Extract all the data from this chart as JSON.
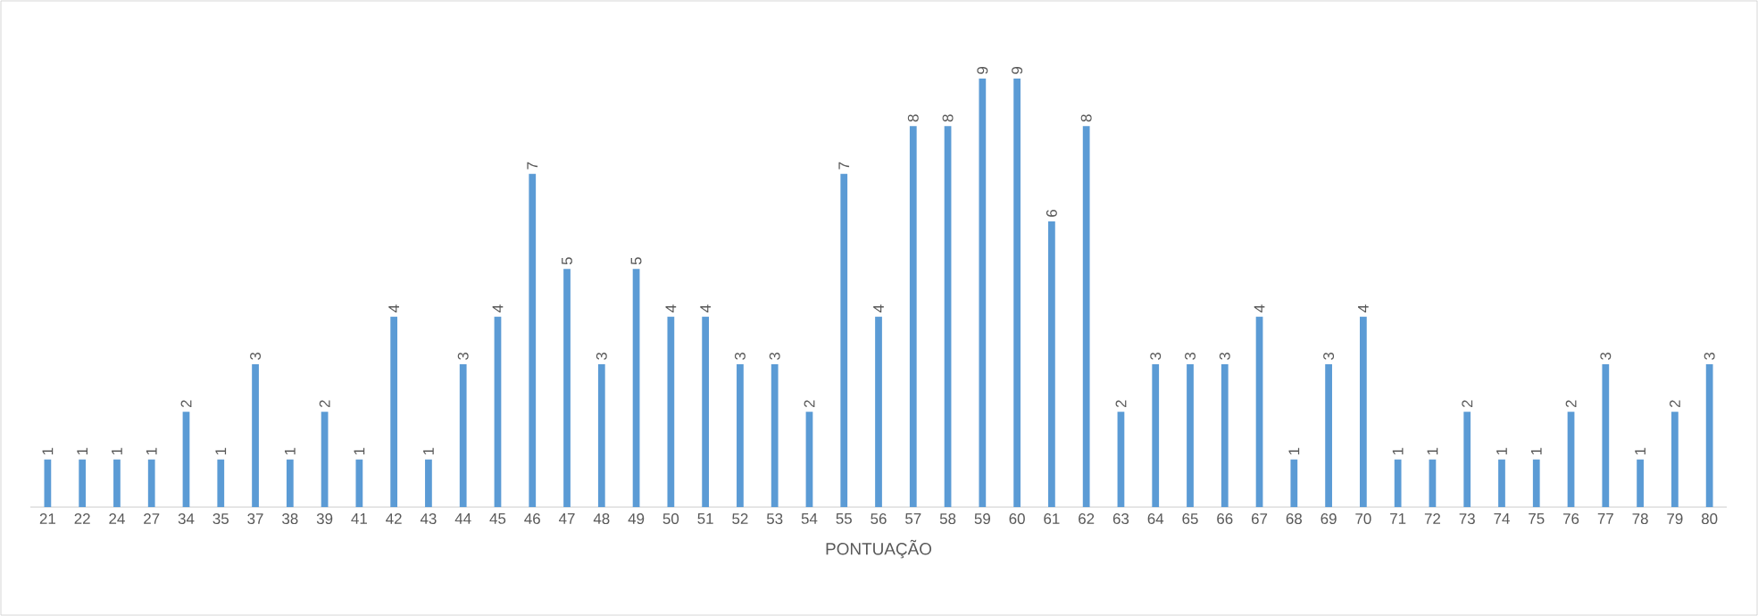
{
  "chart_data": {
    "type": "bar",
    "xlabel": "PONTUAÇÃO",
    "categories": [
      "21",
      "22",
      "24",
      "27",
      "34",
      "35",
      "37",
      "38",
      "39",
      "41",
      "42",
      "43",
      "44",
      "45",
      "46",
      "47",
      "48",
      "49",
      "50",
      "51",
      "52",
      "53",
      "54",
      "55",
      "56",
      "57",
      "58",
      "59",
      "60",
      "61",
      "62",
      "63",
      "64",
      "65",
      "66",
      "67",
      "68",
      "69",
      "70",
      "71",
      "72",
      "73",
      "74",
      "75",
      "76",
      "77",
      "78",
      "79",
      "80"
    ],
    "values": [
      1,
      1,
      1,
      1,
      2,
      1,
      3,
      1,
      2,
      1,
      4,
      1,
      3,
      4,
      7,
      5,
      3,
      5,
      4,
      4,
      3,
      3,
      2,
      7,
      4,
      8,
      8,
      9,
      9,
      6,
      8,
      2,
      3,
      3,
      3,
      4,
      1,
      3,
      4,
      1,
      1,
      2,
      1,
      1,
      2,
      3,
      1,
      2,
      3
    ],
    "color": "#5b9bd5",
    "data_labels": true
  }
}
